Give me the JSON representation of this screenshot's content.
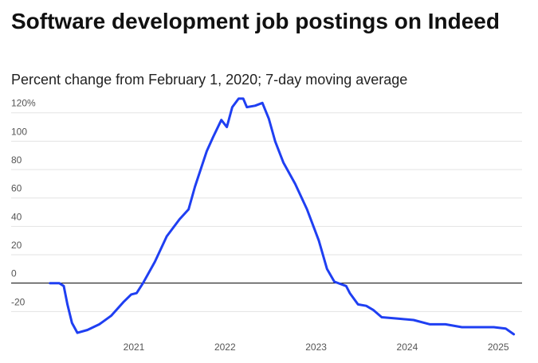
{
  "chart_data": {
    "type": "line",
    "title": "Software development job postings on Indeed",
    "subtitle": "Percent change from February 1, 2020; 7-day moving average",
    "x": [
      2020.08,
      2020.18,
      2020.23,
      2020.27,
      2020.32,
      2020.38,
      2020.49,
      2020.62,
      2020.75,
      2020.89,
      2020.97,
      2021.03,
      2021.1,
      2021.23,
      2021.36,
      2021.5,
      2021.6,
      2021.67,
      2021.8,
      2021.87,
      2021.96,
      2022.02,
      2022.08,
      2022.15,
      2022.2,
      2022.24,
      2022.33,
      2022.41,
      2022.48,
      2022.55,
      2022.64,
      2022.77,
      2022.9,
      2023.03,
      2023.12,
      2023.2,
      2023.33,
      2023.37,
      2023.46,
      2023.55,
      2023.63,
      2023.72,
      2023.9,
      2024.07,
      2024.25,
      2024.42,
      2024.6,
      2024.77,
      2024.95,
      2025.08,
      2025.17
    ],
    "series": [
      {
        "name": "Software development",
        "color": "#1f3ff2",
        "values": [
          0,
          0,
          -2,
          -15,
          -28,
          -35,
          -33,
          -29,
          -23,
          -13,
          -8,
          -7,
          0,
          15,
          33,
          45,
          52,
          68,
          93,
          103,
          115,
          110,
          124,
          130,
          130,
          124,
          125,
          127,
          116,
          100,
          85,
          70,
          52,
          30,
          10,
          1,
          -2,
          -7,
          -15,
          -16,
          -19,
          -24,
          -25,
          -26,
          -29,
          -29,
          -31,
          -31,
          -31,
          -32,
          -36
        ]
      }
    ],
    "xlim": [
      2020,
      2025.3
    ],
    "xticks": [
      2021,
      2022,
      2023,
      2024,
      2025
    ],
    "ylim": [
      -40,
      135
    ],
    "yticks": [
      -20,
      0,
      20,
      40,
      60,
      80,
      100,
      {
        "value": 120,
        "label": "120%"
      }
    ],
    "grid": true
  }
}
